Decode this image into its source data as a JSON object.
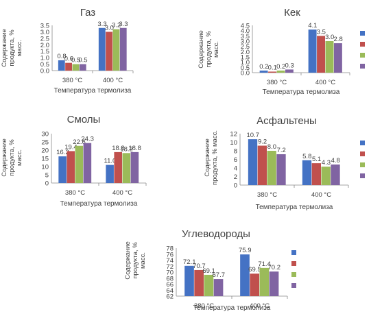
{
  "series_colors": [
    "#4472C4",
    "#C0504D",
    "#9BBB59",
    "#8064A2"
  ],
  "chart_data": [
    {
      "type": "bar",
      "title": "Газ",
      "xlabel": "Температура термолиза",
      "ylabel": "Содержание продукта, % масс.",
      "categories": [
        "380 °C",
        "400 °C"
      ],
      "ylim": [
        0,
        3.5
      ],
      "ytick_step": 0.5,
      "ytick_decimals": 1,
      "series": [
        {
          "values": [
            0.8,
            3.3
          ],
          "labels": [
            "0.8",
            "3.3"
          ]
        },
        {
          "values": [
            0.6,
            3.0
          ],
          "labels": [
            "0.6",
            "3.0"
          ]
        },
        {
          "values": [
            0.5,
            3.2
          ],
          "labels": [
            "0.5",
            "3.2"
          ]
        },
        {
          "values": [
            0.5,
            3.3
          ],
          "labels": [
            "0.5",
            "3.3"
          ]
        }
      ]
    },
    {
      "type": "bar",
      "title": "Кек",
      "xlabel": "Температура термолиза",
      "ylabel": "Содержание продукта, % масс.",
      "categories": [
        "380 °C",
        "400 °C"
      ],
      "ylim": [
        0,
        4.5
      ],
      "ytick_step": 0.5,
      "ytick_decimals": 1,
      "legend": "right",
      "series": [
        {
          "values": [
            0.2,
            4.1
          ],
          "labels": [
            "0.2",
            "4.1"
          ]
        },
        {
          "values": [
            0.1,
            3.5
          ],
          "labels": [
            "0.1",
            "3.5"
          ]
        },
        {
          "values": [
            0.2,
            3.0
          ],
          "labels": [
            "0.2",
            "3.0"
          ]
        },
        {
          "values": [
            0.3,
            2.8
          ],
          "labels": [
            "0.3",
            "2.8"
          ]
        }
      ]
    },
    {
      "type": "bar",
      "title": "Смолы",
      "xlabel": "Температура термолиза",
      "ylabel": "Содержание продукта, % масс.",
      "categories": [
        "380 °C",
        "400 °C"
      ],
      "ylim": [
        0,
        30
      ],
      "ytick_step": 5,
      "ytick_decimals": 0,
      "series": [
        {
          "values": [
            16.2,
            11.0
          ],
          "labels": [
            "16.2",
            "11.0"
          ]
        },
        {
          "values": [
            19.4,
            18.8
          ],
          "labels": [
            "19.4",
            "18.8"
          ]
        },
        {
          "values": [
            22.6,
            18.2
          ],
          "labels": [
            "22.6",
            "18.2"
          ]
        },
        {
          "values": [
            24.3,
            18.8
          ],
          "labels": [
            "24.3",
            "18.8"
          ]
        }
      ]
    },
    {
      "type": "bar",
      "title": "Асфальтены",
      "xlabel": "Температура термолиза",
      "ylabel": "Содержание продукта, % масс.",
      "categories": [
        "380 °C",
        "400 °C"
      ],
      "ylim": [
        0,
        12
      ],
      "ytick_step": 2,
      "ytick_decimals": 0,
      "legend": "right",
      "series": [
        {
          "values": [
            10.7,
            5.8
          ],
          "labels": [
            "10.7",
            "5.8"
          ]
        },
        {
          "values": [
            9.2,
            5.1
          ],
          "labels": [
            "9.2",
            "5.1"
          ]
        },
        {
          "values": [
            8.0,
            4.3
          ],
          "labels": [
            "8.0",
            "4.3"
          ]
        },
        {
          "values": [
            7.2,
            4.8
          ],
          "labels": [
            "7.2",
            "4.8"
          ]
        }
      ]
    },
    {
      "type": "bar",
      "title": "Углеводороды",
      "xlabel": "Температура термолиза",
      "ylabel": "Содержание продукта, % масс.",
      "categories": [
        "380 °C",
        "400 °C"
      ],
      "ylim": [
        62,
        78
      ],
      "ytick_step": 2,
      "ytick_decimals": 0,
      "legend": "right",
      "series": [
        {
          "values": [
            72.1,
            75.9
          ],
          "labels": [
            "72.1",
            "75.9"
          ]
        },
        {
          "values": [
            70.7,
            69.5
          ],
          "labels": [
            "70.7",
            "69.5"
          ]
        },
        {
          "values": [
            69.1,
            71.4
          ],
          "labels": [
            "69.1",
            "71.4"
          ]
        },
        {
          "values": [
            67.7,
            70.2
          ],
          "labels": [
            "67.7",
            "70.2"
          ]
        }
      ]
    }
  ]
}
